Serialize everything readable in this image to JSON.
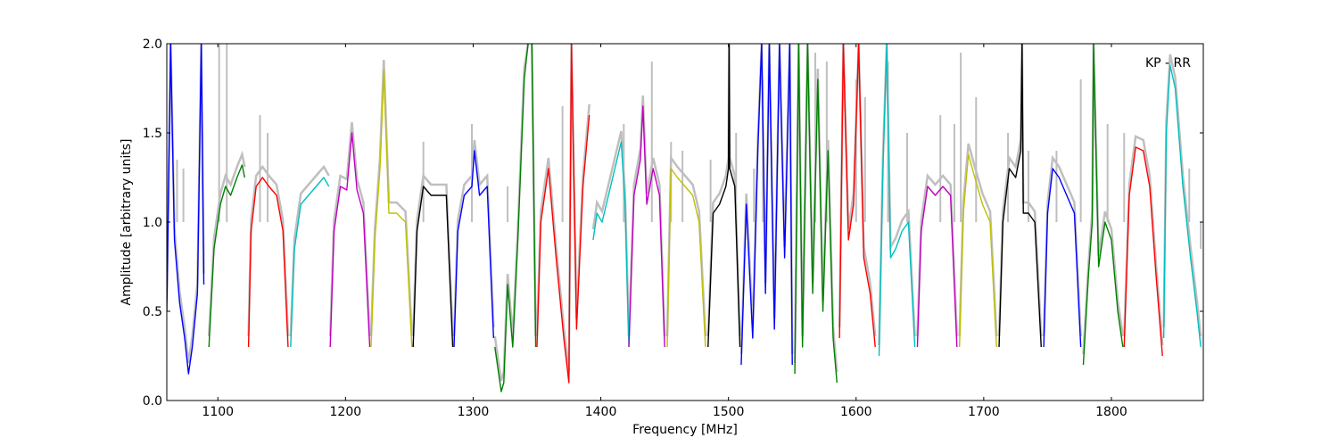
{
  "chart_data": {
    "type": "line",
    "annotation": "KP - RR",
    "xlabel": "Frequency [MHz]",
    "ylabel": "Amplitude [arbitrary units]",
    "xlim": [
      1060,
      1872
    ],
    "ylim": [
      0.0,
      2.0
    ],
    "x_ticks": [
      1100,
      1200,
      1300,
      1400,
      1500,
      1600,
      1700,
      1800
    ],
    "y_ticks": [
      0.0,
      0.5,
      1.0,
      1.5,
      2.0
    ],
    "y_tick_labels": [
      "0.0",
      "0.5",
      "1.0",
      "1.5",
      "2.0"
    ],
    "grid": false,
    "reference_color": "#bfbfbf",
    "colors": {
      "b": "#0000ff",
      "g": "#008000",
      "r": "#ff0000",
      "c": "#00bfbf",
      "m": "#bf00bf",
      "y": "#bfbf00",
      "k": "#000000"
    },
    "series": [
      {
        "color": "b",
        "x": [
          1060,
          1063,
          1066,
          1070,
          1074,
          1077,
          1080,
          1084,
          1087,
          1089
        ],
        "y": [
          0.5,
          2.0,
          0.9,
          0.55,
          0.35,
          0.15,
          0.3,
          0.6,
          2.0,
          0.65
        ]
      },
      {
        "color": "g",
        "x": [
          1093,
          1097,
          1102,
          1106,
          1110,
          1115,
          1119,
          1121
        ],
        "y": [
          0.3,
          0.85,
          1.1,
          1.2,
          1.15,
          1.25,
          1.32,
          1.25
        ]
      },
      {
        "color": "r",
        "x": [
          1124,
          1126,
          1130,
          1135,
          1140,
          1146,
          1151,
          1155
        ],
        "y": [
          0.3,
          0.95,
          1.2,
          1.25,
          1.2,
          1.15,
          0.95,
          0.3
        ]
      },
      {
        "color": "c",
        "x": [
          1157,
          1160,
          1165,
          1171,
          1177,
          1183,
          1187
        ],
        "y": [
          0.3,
          0.85,
          1.1,
          1.15,
          1.2,
          1.25,
          1.2
        ]
      },
      {
        "color": "m",
        "x": [
          1188,
          1191,
          1196,
          1201,
          1205,
          1209,
          1214,
          1219
        ],
        "y": [
          0.3,
          0.95,
          1.2,
          1.18,
          1.5,
          1.18,
          1.05,
          0.3
        ]
      },
      {
        "color": "y",
        "x": [
          1220,
          1223,
          1227,
          1230,
          1234,
          1240,
          1247,
          1252
        ],
        "y": [
          0.3,
          0.9,
          1.3,
          1.85,
          1.05,
          1.05,
          1.0,
          0.3
        ]
      },
      {
        "color": "k",
        "x": [
          1253,
          1256,
          1261,
          1267,
          1273,
          1279,
          1284
        ],
        "y": [
          0.3,
          0.95,
          1.2,
          1.15,
          1.15,
          1.15,
          0.3
        ]
      },
      {
        "color": "b",
        "x": [
          1285,
          1288,
          1293,
          1299,
          1301,
          1305,
          1311,
          1316
        ],
        "y": [
          0.3,
          0.95,
          1.15,
          1.2,
          1.4,
          1.15,
          1.2,
          0.35
        ]
      },
      {
        "color": "g",
        "x": [
          1317,
          1322,
          1324,
          1327,
          1331,
          1335,
          1340,
          1343
        ],
        "y": [
          0.3,
          0.05,
          0.1,
          0.65,
          0.3,
          0.9,
          1.8,
          2.0
        ]
      },
      {
        "color": "g",
        "x": [
          1346,
          1349
        ],
        "y": [
          2.0,
          0.3
        ]
      },
      {
        "color": "r",
        "x": [
          1350,
          1353,
          1359,
          1365,
          1371,
          1375,
          1377,
          1381,
          1386,
          1391
        ],
        "y": [
          0.3,
          1.0,
          1.3,
          0.8,
          0.35,
          0.1,
          2.0,
          0.4,
          1.2,
          1.6
        ]
      },
      {
        "color": "c",
        "x": [
          1394,
          1397,
          1401,
          1406,
          1411,
          1416,
          1419,
          1422
        ],
        "y": [
          0.9,
          1.05,
          1.0,
          1.15,
          1.3,
          1.45,
          1.1,
          0.3
        ]
      },
      {
        "color": "m",
        "x": [
          1422,
          1426,
          1431,
          1433,
          1436,
          1441,
          1446,
          1450
        ],
        "y": [
          0.3,
          1.15,
          1.35,
          1.65,
          1.1,
          1.3,
          1.15,
          0.3
        ]
      },
      {
        "color": "y",
        "x": [
          1452,
          1455,
          1460,
          1466,
          1472,
          1477,
          1482
        ],
        "y": [
          0.3,
          1.3,
          1.25,
          1.2,
          1.15,
          1.0,
          0.3
        ]
      },
      {
        "color": "k",
        "x": [
          1484,
          1488,
          1493,
          1498,
          1500,
          1500.5,
          1501,
          1505,
          1509
        ],
        "y": [
          0.3,
          1.05,
          1.1,
          1.2,
          1.3,
          2.0,
          1.3,
          1.2,
          0.3
        ]
      },
      {
        "color": "b",
        "x": [
          1510,
          1514,
          1519,
          1523,
          1526,
          1529,
          1532,
          1536,
          1540,
          1544,
          1548,
          1550
        ],
        "y": [
          0.2,
          1.1,
          0.35,
          1.4,
          2.0,
          0.6,
          2.0,
          0.4,
          2.0,
          0.8,
          2.0,
          0.2
        ]
      },
      {
        "color": "g",
        "x": [
          1552,
          1555,
          1558,
          1562,
          1566,
          1570,
          1574,
          1578,
          1582,
          1585
        ],
        "y": [
          0.15,
          2.0,
          0.3,
          2.0,
          0.6,
          1.8,
          0.5,
          1.4,
          0.35,
          0.1
        ]
      },
      {
        "color": "r",
        "x": [
          1587,
          1590,
          1594,
          1598,
          1602,
          1606,
          1611,
          1615
        ],
        "y": [
          0.35,
          2.0,
          0.9,
          1.1,
          2.0,
          0.8,
          0.6,
          0.3
        ]
      },
      {
        "color": "c",
        "x": [
          1618,
          1621,
          1624,
          1627,
          1631,
          1636,
          1641,
          1646
        ],
        "y": [
          0.25,
          1.3,
          2.0,
          0.8,
          0.85,
          0.95,
          1.0,
          0.3
        ]
      },
      {
        "color": "m",
        "x": [
          1648,
          1651,
          1656,
          1662,
          1668,
          1674,
          1679
        ],
        "y": [
          0.3,
          0.95,
          1.2,
          1.15,
          1.2,
          1.15,
          0.3
        ]
      },
      {
        "color": "y",
        "x": [
          1681,
          1684,
          1688,
          1693,
          1699,
          1705,
          1710
        ],
        "y": [
          0.3,
          1.05,
          1.38,
          1.25,
          1.1,
          1.0,
          0.3
        ]
      },
      {
        "color": "k",
        "x": [
          1712,
          1715,
          1720,
          1725,
          1729,
          1730,
          1731,
          1735,
          1740,
          1745
        ],
        "y": [
          0.3,
          1.0,
          1.3,
          1.25,
          1.4,
          2.0,
          1.05,
          1.05,
          1.0,
          0.3
        ]
      },
      {
        "color": "b",
        "x": [
          1747,
          1750,
          1754,
          1759,
          1765,
          1771,
          1776
        ],
        "y": [
          0.3,
          1.05,
          1.3,
          1.25,
          1.15,
          1.05,
          0.3
        ]
      },
      {
        "color": "g",
        "x": [
          1778,
          1782,
          1785,
          1786,
          1790,
          1795,
          1800,
          1805,
          1809
        ],
        "y": [
          0.2,
          0.7,
          1.0,
          2.0,
          0.75,
          1.0,
          0.9,
          0.5,
          0.3
        ]
      },
      {
        "color": "r",
        "x": [
          1810,
          1814,
          1819,
          1825,
          1830,
          1835,
          1840
        ],
        "y": [
          0.3,
          1.15,
          1.42,
          1.4,
          1.2,
          0.7,
          0.25
        ]
      },
      {
        "color": "c",
        "x": [
          1841,
          1843,
          1846,
          1850,
          1856,
          1862,
          1867,
          1870
        ],
        "y": [
          0.35,
          1.5,
          1.88,
          1.75,
          1.2,
          0.8,
          0.5,
          0.3
        ]
      }
    ],
    "reference_spikes": [
      {
        "x": 1068,
        "y": 1.35
      },
      {
        "x": 1073,
        "y": 1.3
      },
      {
        "x": 1101,
        "y": 2.0
      },
      {
        "x": 1107,
        "y": 2.0
      },
      {
        "x": 1133,
        "y": 1.6
      },
      {
        "x": 1139,
        "y": 1.5
      },
      {
        "x": 1261,
        "y": 1.45
      },
      {
        "x": 1299,
        "y": 1.55
      },
      {
        "x": 1327,
        "y": 1.2
      },
      {
        "x": 1370,
        "y": 1.65
      },
      {
        "x": 1418,
        "y": 1.55
      },
      {
        "x": 1440,
        "y": 1.9
      },
      {
        "x": 1455,
        "y": 1.45
      },
      {
        "x": 1464,
        "y": 1.4
      },
      {
        "x": 1486,
        "y": 1.35
      },
      {
        "x": 1506,
        "y": 1.5
      },
      {
        "x": 1520,
        "y": 1.3
      },
      {
        "x": 1527,
        "y": 1.8
      },
      {
        "x": 1568,
        "y": 1.95
      },
      {
        "x": 1577,
        "y": 1.9
      },
      {
        "x": 1600,
        "y": 1.8
      },
      {
        "x": 1607,
        "y": 1.7
      },
      {
        "x": 1625,
        "y": 1.9
      },
      {
        "x": 1640,
        "y": 1.5
      },
      {
        "x": 1666,
        "y": 1.6
      },
      {
        "x": 1677,
        "y": 1.55
      },
      {
        "x": 1682,
        "y": 1.95
      },
      {
        "x": 1694,
        "y": 1.7
      },
      {
        "x": 1719,
        "y": 1.5
      },
      {
        "x": 1735,
        "y": 1.4
      },
      {
        "x": 1757,
        "y": 1.4
      },
      {
        "x": 1776,
        "y": 1.8
      },
      {
        "x": 1797,
        "y": 1.55
      },
      {
        "x": 1810,
        "y": 1.5
      },
      {
        "x": 1861,
        "y": 1.3
      },
      {
        "x": 1870,
        "y": 0.85
      }
    ]
  }
}
